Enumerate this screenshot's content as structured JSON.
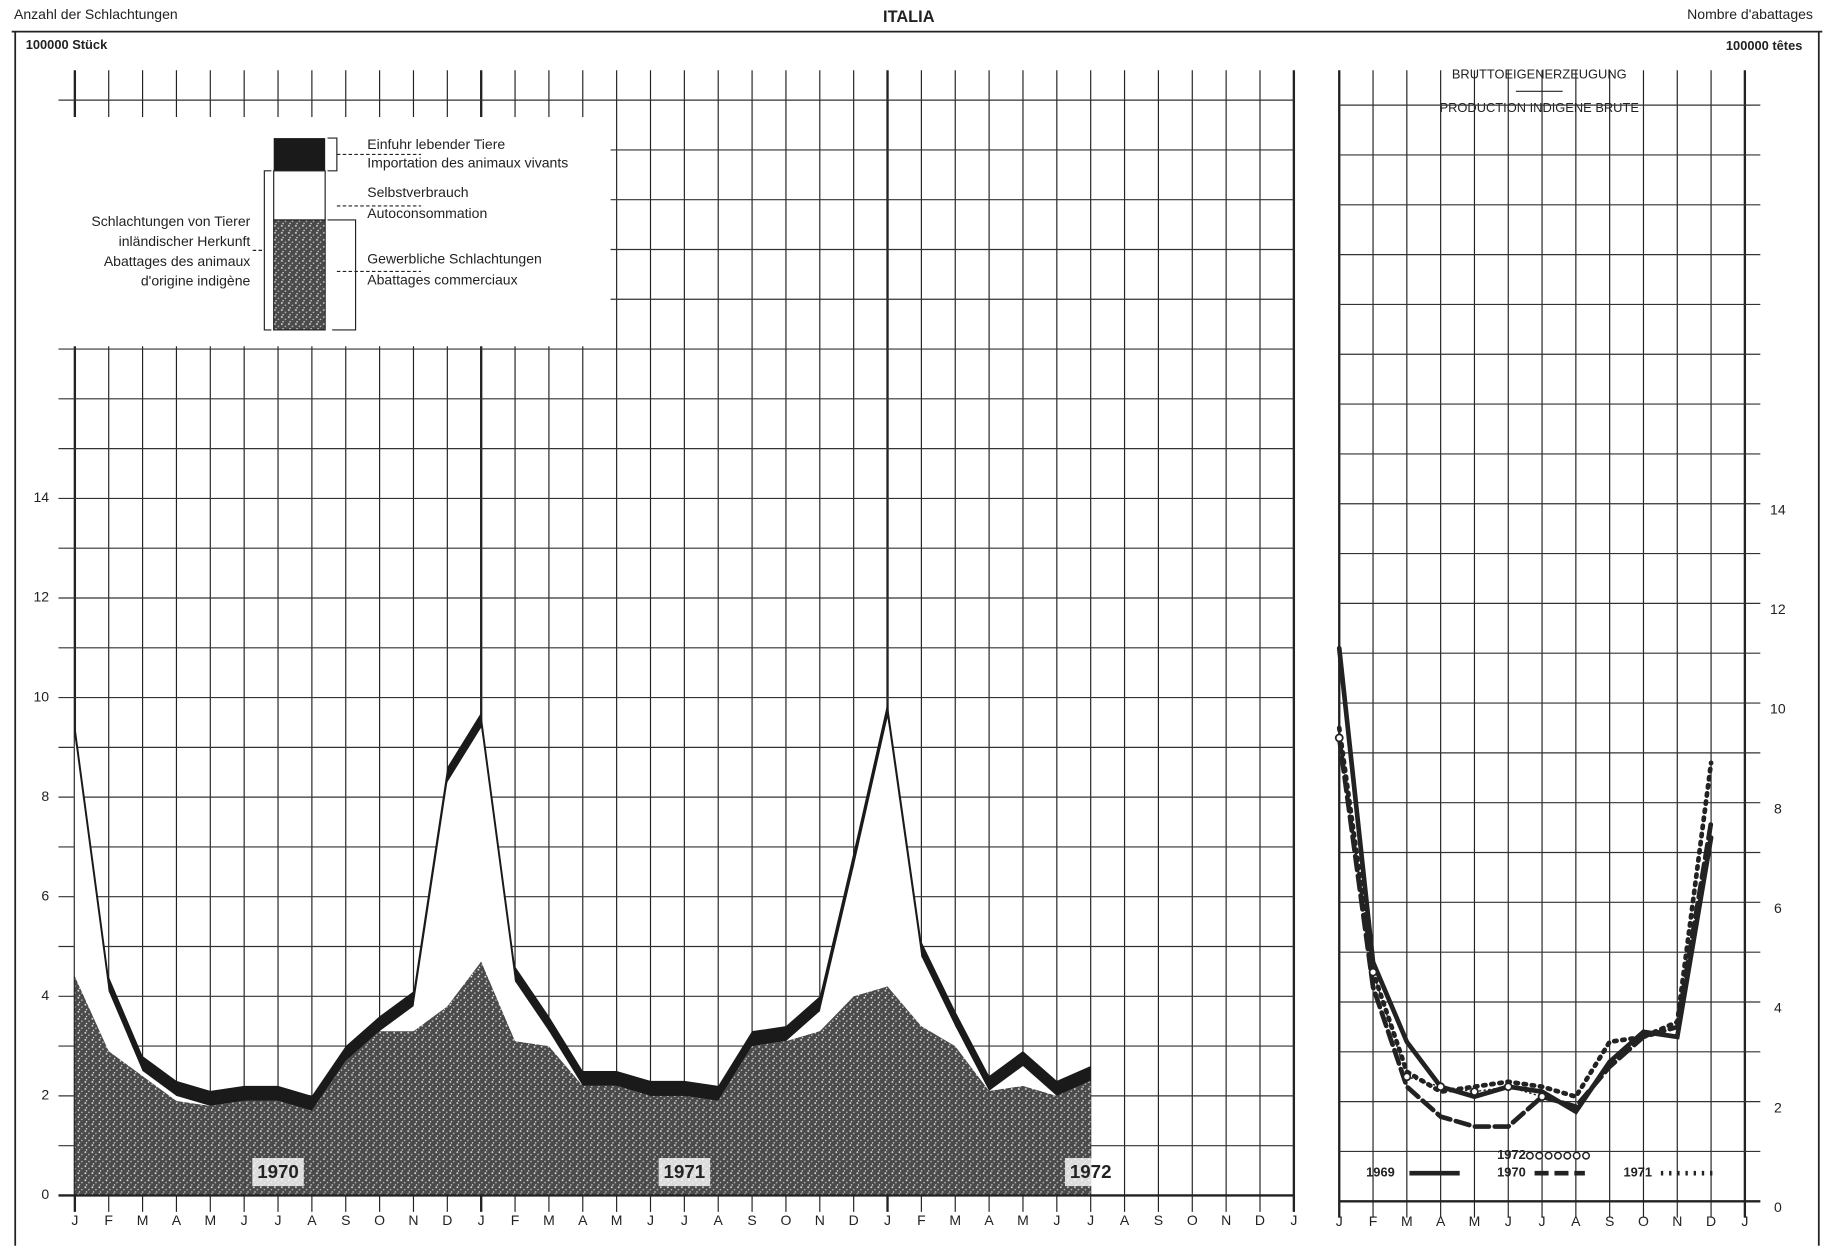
{
  "header": {
    "left": "Anzahl der Schlachtungen",
    "title": "ITALIA",
    "right": "Nombre d'abattages"
  },
  "chart_data": [
    {
      "type": "area",
      "stacked": true,
      "ylabel": "100000 Stück",
      "categories": [
        "J",
        "F",
        "M",
        "A",
        "M",
        "J",
        "J",
        "A",
        "S",
        "O",
        "N",
        "D",
        "J",
        "F",
        "M",
        "A",
        "M",
        "J",
        "J",
        "A",
        "S",
        "O",
        "N",
        "D",
        "J",
        "F",
        "M",
        "A",
        "M",
        "J",
        "J",
        "A",
        "S",
        "O",
        "N",
        "D",
        "J"
      ],
      "year_labels": [
        "1970",
        "1971",
        "1972"
      ],
      "legend_group": [
        "Schlachtungen von Tierer",
        "inländischer Herkunft",
        "Abattages des animaux",
        "d'origine indigène"
      ],
      "series": [
        {
          "name": "Gewerbliche Schlachtungen",
          "name_fr": "Abattages commerciaux",
          "color": "#3a3a3a",
          "values": [
            4.4,
            2.9,
            2.4,
            1.9,
            1.8,
            1.9,
            1.9,
            1.7,
            2.7,
            3.3,
            3.3,
            3.8,
            4.7,
            3.1,
            3.0,
            2.2,
            2.2,
            2.0,
            2.0,
            1.9,
            3.0,
            3.1,
            3.3,
            4.0,
            4.2,
            3.4,
            3.0,
            2.1,
            2.2,
            2.0,
            2.3,
            null,
            null,
            null,
            null,
            null,
            null
          ]
        },
        {
          "name": "Selbstverbrauch",
          "name_fr": "Autoconsommation",
          "color": "#ffffff",
          "values": [
            4.8,
            1.2,
            0.1,
            0.1,
            0,
            0,
            0,
            0,
            0,
            0,
            0.5,
            4.5,
            4.7,
            1.2,
            0.3,
            0,
            0,
            0,
            0,
            0,
            0,
            0,
            0.4,
            2.6,
            5.4,
            1.4,
            0.4,
            0,
            0.4,
            0,
            0,
            null,
            null,
            null,
            null,
            null,
            null
          ]
        },
        {
          "name": "Einfuhr lebender Tiere",
          "name_fr": "Importation des animaux vivants",
          "color": "#1a1a1a",
          "values": [
            0.3,
            0.3,
            0.3,
            0.3,
            0.3,
            0.3,
            0.3,
            0.3,
            0.3,
            0.3,
            0.3,
            0.3,
            0.3,
            0.3,
            0.3,
            0.3,
            0.3,
            0.3,
            0.3,
            0.3,
            0.3,
            0.3,
            0.3,
            0.3,
            0.3,
            0.3,
            0.3,
            0.3,
            0.3,
            0.3,
            0.3,
            null,
            null,
            null,
            null,
            null,
            null
          ]
        }
      ],
      "ylim": [
        0,
        22.6
      ],
      "yticks": [
        0,
        2,
        4,
        6,
        8,
        10,
        12,
        14
      ],
      "minor_yticks": [
        1,
        3,
        5,
        7,
        9,
        11,
        13,
        15,
        16,
        17,
        18,
        19,
        20,
        21,
        22
      ],
      "grid": true
    },
    {
      "type": "line",
      "ylabel": "100000 têtes",
      "title": "BRUTTOEIGENERZEUGUNG",
      "subtitle": "PRODUCTION INDIGENE BRUTE",
      "categories": [
        "J",
        "F",
        "M",
        "A",
        "M",
        "J",
        "J",
        "A",
        "S",
        "O",
        "N",
        "D",
        "J"
      ],
      "series": [
        {
          "name": "1969",
          "color": "#222222",
          "style": "solid",
          "values": [
            11.1,
            4.8,
            3.2,
            2.3,
            2.1,
            2.3,
            2.2,
            1.8,
            2.8,
            3.4,
            3.3,
            7.3,
            null
          ]
        },
        {
          "name": "1970",
          "color": "#222222",
          "style": "dashed",
          "values": [
            9.3,
            4.3,
            2.3,
            1.7,
            1.5,
            1.5,
            2.1,
            1.9,
            2.7,
            3.3,
            3.5,
            7.6,
            null
          ]
        },
        {
          "name": "1971",
          "color": "#222222",
          "style": "dotted",
          "values": [
            9.5,
            4.6,
            2.6,
            2.2,
            2.3,
            2.4,
            2.3,
            2.1,
            3.2,
            3.3,
            3.6,
            8.8,
            null
          ]
        },
        {
          "name": "1972",
          "color": "#222222",
          "style": "circles",
          "values": [
            9.3,
            4.6,
            2.5,
            2.3,
            2.2,
            2.3,
            2.1,
            null,
            null,
            null,
            null,
            null,
            null
          ]
        }
      ],
      "ylim": [
        0,
        22.7
      ],
      "yticks": [
        0,
        2,
        4,
        6,
        8,
        10,
        12,
        14
      ],
      "minor_yticks": [
        1,
        3,
        5,
        7,
        9,
        11,
        13,
        15,
        16,
        17,
        18,
        19,
        20,
        21,
        22
      ],
      "grid": true
    }
  ]
}
